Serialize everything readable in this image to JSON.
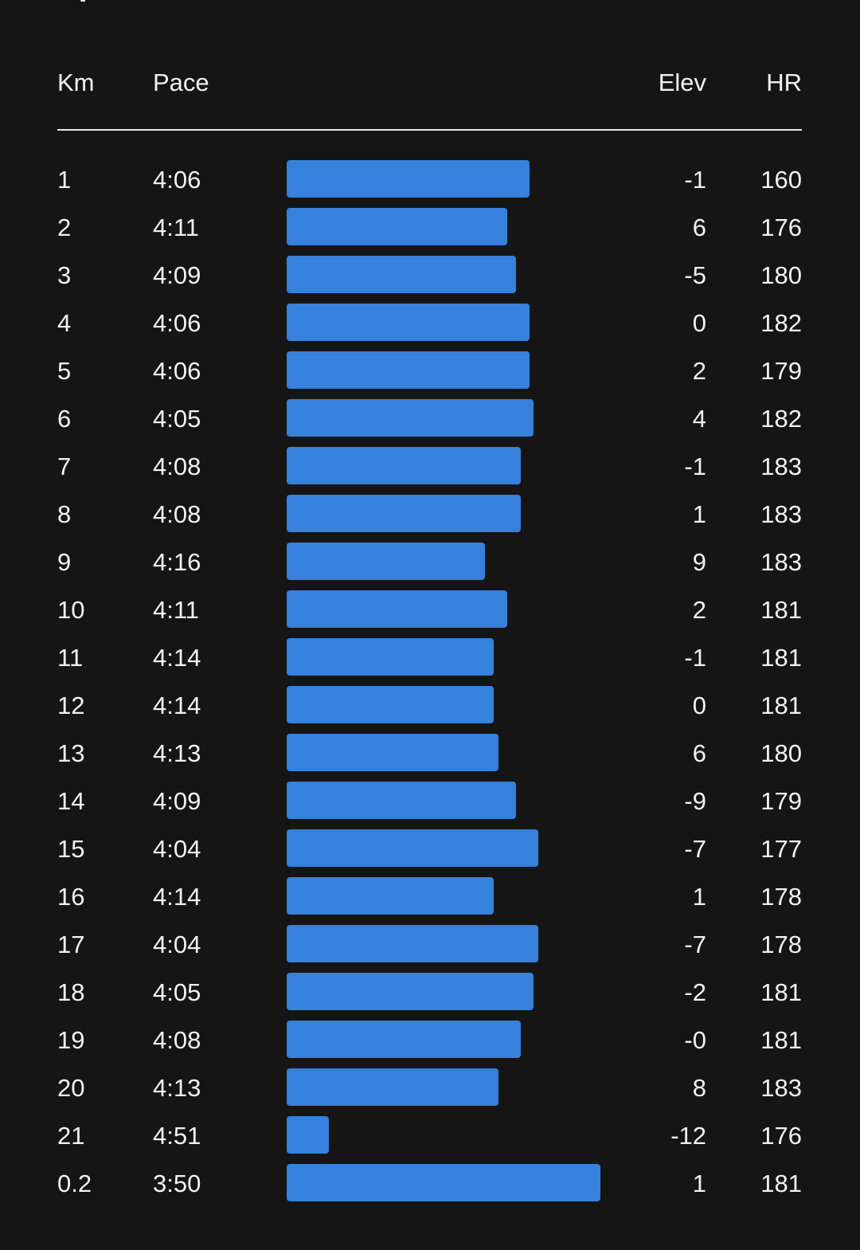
{
  "header": {
    "km": "Km",
    "pace": "Pace",
    "elev": "Elev",
    "hr": "HR"
  },
  "bar_color": "#3581DB",
  "splits": [
    {
      "km": "1",
      "pace": "4:06",
      "elev": "-1",
      "hr": "160",
      "pace_seconds": 246
    },
    {
      "km": "2",
      "pace": "4:11",
      "elev": "6",
      "hr": "176",
      "pace_seconds": 251
    },
    {
      "km": "3",
      "pace": "4:09",
      "elev": "-5",
      "hr": "180",
      "pace_seconds": 249
    },
    {
      "km": "4",
      "pace": "4:06",
      "elev": "0",
      "hr": "182",
      "pace_seconds": 246
    },
    {
      "km": "5",
      "pace": "4:06",
      "elev": "2",
      "hr": "179",
      "pace_seconds": 246
    },
    {
      "km": "6",
      "pace": "4:05",
      "elev": "4",
      "hr": "182",
      "pace_seconds": 245
    },
    {
      "km": "7",
      "pace": "4:08",
      "elev": "-1",
      "hr": "183",
      "pace_seconds": 248
    },
    {
      "km": "8",
      "pace": "4:08",
      "elev": "1",
      "hr": "183",
      "pace_seconds": 248
    },
    {
      "km": "9",
      "pace": "4:16",
      "elev": "9",
      "hr": "183",
      "pace_seconds": 256
    },
    {
      "km": "10",
      "pace": "4:11",
      "elev": "2",
      "hr": "181",
      "pace_seconds": 251
    },
    {
      "km": "11",
      "pace": "4:14",
      "elev": "-1",
      "hr": "181",
      "pace_seconds": 254
    },
    {
      "km": "12",
      "pace": "4:14",
      "elev": "0",
      "hr": "181",
      "pace_seconds": 254
    },
    {
      "km": "13",
      "pace": "4:13",
      "elev": "6",
      "hr": "180",
      "pace_seconds": 253
    },
    {
      "km": "14",
      "pace": "4:09",
      "elev": "-9",
      "hr": "179",
      "pace_seconds": 249
    },
    {
      "km": "15",
      "pace": "4:04",
      "elev": "-7",
      "hr": "177",
      "pace_seconds": 244
    },
    {
      "km": "16",
      "pace": "4:14",
      "elev": "1",
      "hr": "178",
      "pace_seconds": 254
    },
    {
      "km": "17",
      "pace": "4:04",
      "elev": "-7",
      "hr": "178",
      "pace_seconds": 244
    },
    {
      "km": "18",
      "pace": "4:05",
      "elev": "-2",
      "hr": "181",
      "pace_seconds": 245
    },
    {
      "km": "19",
      "pace": "4:08",
      "elev": "-0",
      "hr": "181",
      "pace_seconds": 248
    },
    {
      "km": "20",
      "pace": "4:13",
      "elev": "8",
      "hr": "183",
      "pace_seconds": 253
    },
    {
      "km": "21",
      "pace": "4:51",
      "elev": "-12",
      "hr": "176",
      "pace_seconds": 291
    },
    {
      "km": "0.2",
      "pace": "3:50",
      "elev": "1",
      "hr": "181",
      "pace_seconds": 230
    }
  ]
}
